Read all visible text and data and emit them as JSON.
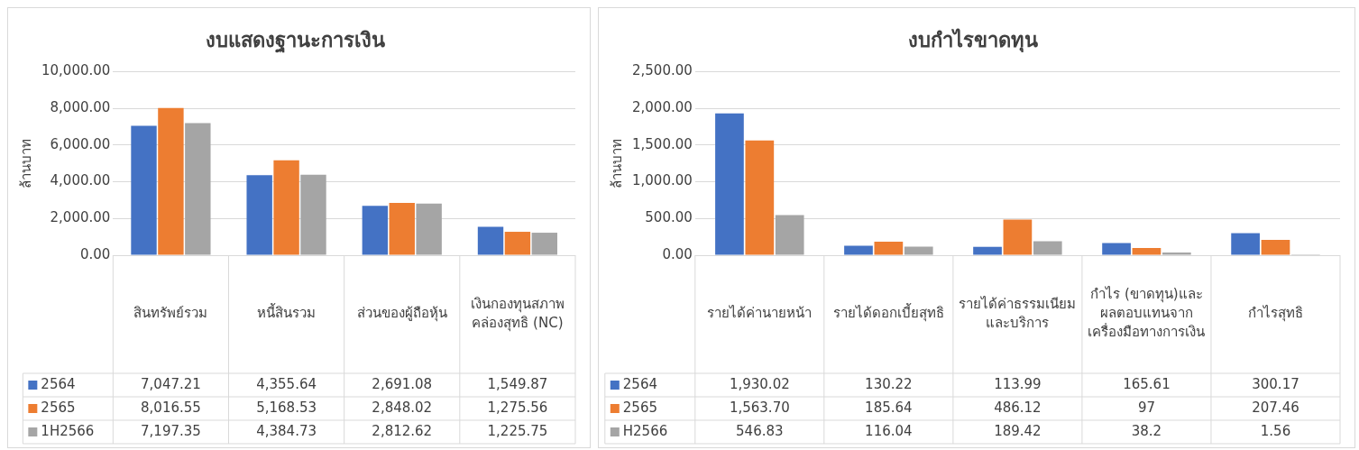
{
  "chart_data": [
    {
      "type": "bar",
      "title": "งบแสดงฐานะการเงิน",
      "ylabel": "ล้านบาท",
      "categories": [
        "สินทรัพย์รวม",
        "หนี้สินรวม",
        "ส่วนของผู้ถือหุ้น",
        "เงินกองทุนสภาพคล่องสุทธิ (NC)"
      ],
      "series": [
        {
          "name": "2564",
          "color": "#4472c4",
          "values": [
            7047.21,
            4355.64,
            2691.08,
            1549.87
          ],
          "value_labels": [
            "7,047.21",
            "4,355.64",
            "2,691.08",
            "1,549.87"
          ]
        },
        {
          "name": "2565",
          "color": "#ed7d31",
          "values": [
            8016.55,
            5168.53,
            2848.02,
            1275.56
          ],
          "value_labels": [
            "8,016.55",
            "5,168.53",
            "2,848.02",
            "1,275.56"
          ]
        },
        {
          "name": "1H2566",
          "color": "#a5a5a5",
          "values": [
            7197.35,
            4384.73,
            2812.62,
            1225.75
          ],
          "value_labels": [
            "7,197.35",
            "4,384.73",
            "2,812.62",
            "1,225.75"
          ]
        }
      ],
      "ylim": [
        0,
        10000
      ],
      "yticks": [
        {
          "value": 0,
          "label": "0.00"
        },
        {
          "value": 2000,
          "label": "2,000.00"
        },
        {
          "value": 4000,
          "label": "4,000.00"
        },
        {
          "value": 6000,
          "label": "6,000.00"
        },
        {
          "value": 8000,
          "label": "8,000.00"
        },
        {
          "value": 10000,
          "label": "10,000.00"
        }
      ],
      "grid": "y",
      "legend": "bottom"
    },
    {
      "type": "bar",
      "title": "งบกำไรขาดทุน",
      "ylabel": "ล้านบาท",
      "categories": [
        "รายได้ค่านายหน้า",
        "รายได้ดอกเบี้ยสุทธิ",
        "รายได้ค่าธรรมเนียมและบริการ",
        "กำไร (ขาดทุน)และผลตอบแทนจากเครื่องมือทางการเงิน",
        "กำไรสุทธิ"
      ],
      "series": [
        {
          "name": "2564",
          "color": "#4472c4",
          "values": [
            1930.02,
            130.22,
            113.99,
            165.61,
            300.17
          ],
          "value_labels": [
            "1,930.02",
            "130.22",
            "113.99",
            "165.61",
            "300.17"
          ]
        },
        {
          "name": "2565",
          "color": "#ed7d31",
          "values": [
            1563.7,
            185.64,
            486.12,
            97,
            207.46
          ],
          "value_labels": [
            "1,563.70",
            "185.64",
            "486.12",
            "97",
            "207.46"
          ]
        },
        {
          "name": "H2566",
          "color": "#a5a5a5",
          "values": [
            546.83,
            116.04,
            189.42,
            38.2,
            1.56
          ],
          "value_labels": [
            "546.83",
            "116.04",
            "189.42",
            "38.2",
            "1.56"
          ]
        }
      ],
      "ylim": [
        0,
        2500
      ],
      "yticks": [
        {
          "value": 0,
          "label": "0.00"
        },
        {
          "value": 500,
          "label": "500.00"
        },
        {
          "value": 1000,
          "label": "1,000.00"
        },
        {
          "value": 1500,
          "label": "1,500.00"
        },
        {
          "value": 2000,
          "label": "2,000.00"
        },
        {
          "value": 2500,
          "label": "2,500.00"
        }
      ],
      "grid": "y",
      "legend": "bottom"
    }
  ]
}
